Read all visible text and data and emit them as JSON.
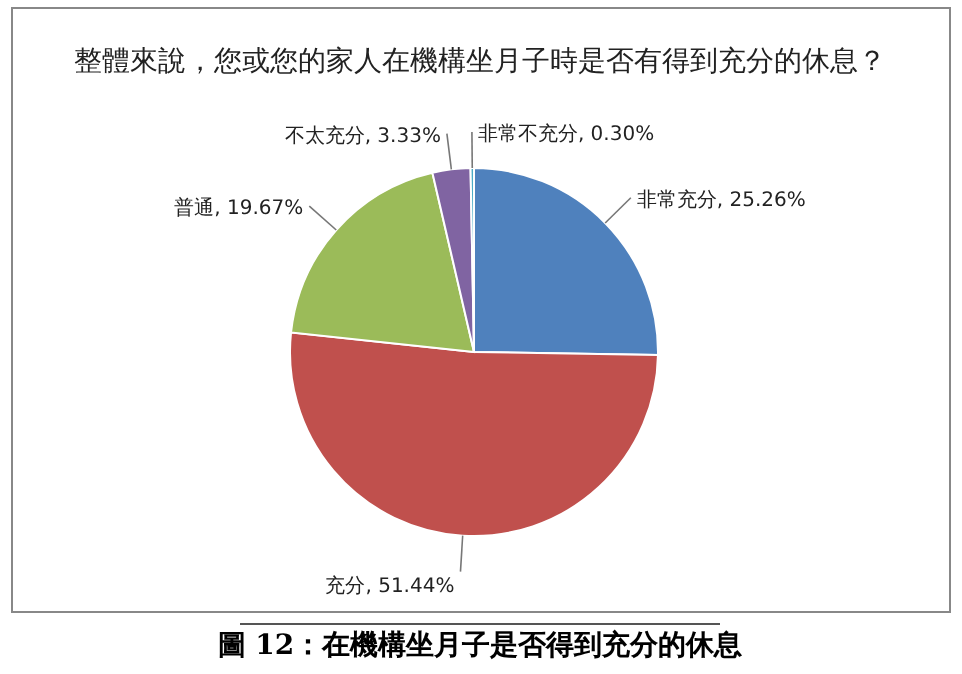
{
  "chart_data": {
    "type": "pie",
    "title": "整體來說，您或您的家人在機構坐月子時是否有得到充分的休息？",
    "categories": [
      "非常充分",
      "充分",
      "普通",
      "不太充分",
      "非常不充分"
    ],
    "values": [
      25.26,
      51.44,
      19.67,
      3.33,
      0.3
    ],
    "value_labels": [
      "25.26%",
      "51.44%",
      "19.67%",
      "3.33%",
      "0.30%"
    ],
    "colors": [
      "#4f81bd",
      "#c0504d",
      "#9bbb59",
      "#8064a2",
      "#4bacc6"
    ],
    "annotations": [
      "圖 12：在機構坐月子是否得到充分的休息"
    ]
  }
}
